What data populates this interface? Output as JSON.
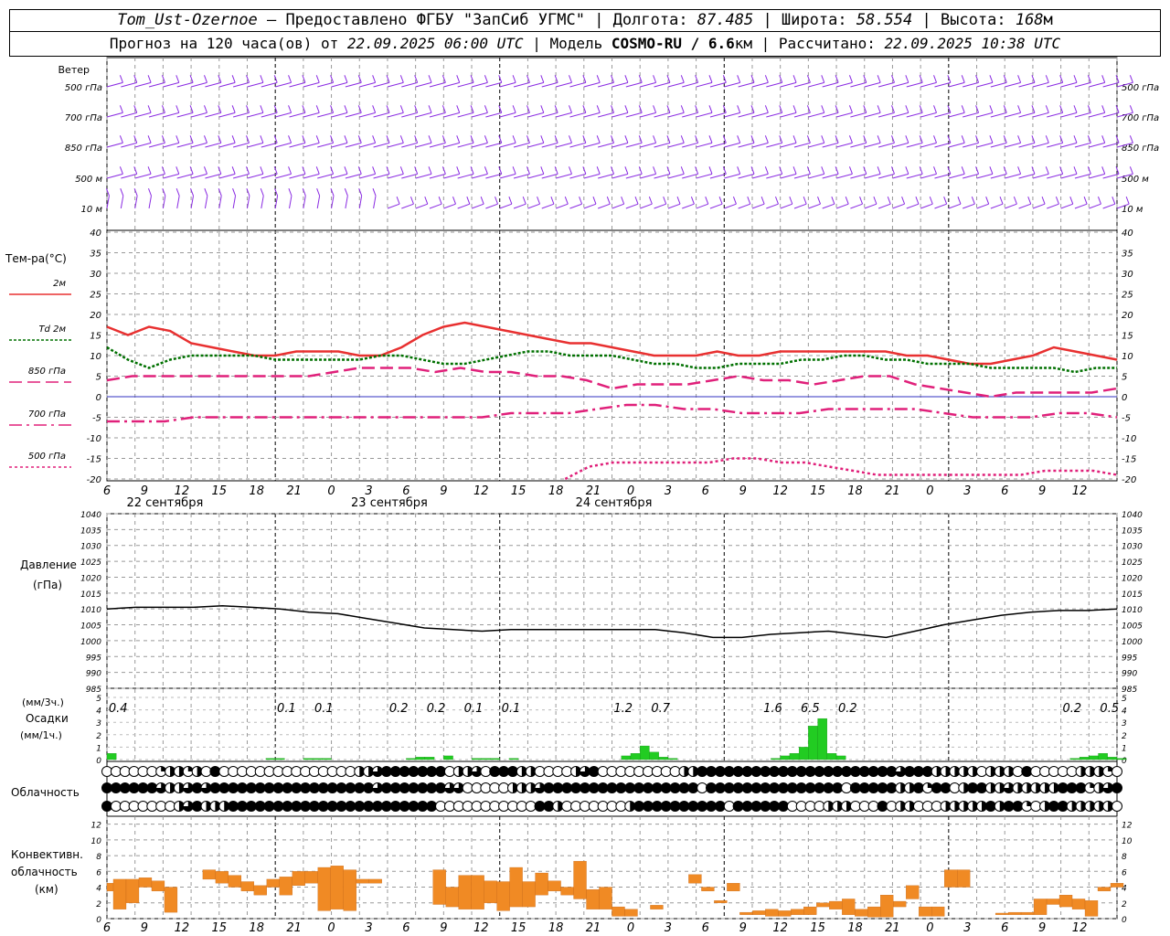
{
  "header": {
    "station": "Tom_Ust-Ozernoe",
    "provided": " — Предоставлено ФГБУ \"ЗапСиб УГМС\" | ",
    "lon_label": "Долгота: ",
    "lon": "87.485",
    "lat_label": " | Широта: ",
    "lat": "58.554",
    "alt_label": " | Высота: ",
    "alt": "168",
    "alt_unit": "м",
    "forecast_label": "Прогноз на 120 часа(ов) от ",
    "forecast_time": "22.09.2025 06:00 UTC",
    "model_label": "  | Модель ",
    "model": "COSMO-RU / 6.6",
    "model_unit": "км",
    "calc_label": " | Рассчитано: ",
    "calc_time": "22.09.2025 10:38 UTC"
  },
  "colors": {
    "t2m": "#e83030",
    "td2m": "#007000",
    "t850": "#e0207a",
    "t700": "#e0207a",
    "t500": "#e0207a",
    "wind": "#8a2be2",
    "precip": "#22cc22",
    "conv": "#f08a24",
    "pressure": "#000000",
    "zero_line": "#3030c0"
  },
  "chart_data": {
    "type": "line",
    "x_hours": [
      "6",
      "9",
      "12",
      "15",
      "18",
      "21",
      "0",
      "3",
      "6",
      "9",
      "12",
      "15",
      "18",
      "21",
      "0",
      "3",
      "6",
      "9",
      "12",
      "15",
      "18",
      "21",
      "0",
      "3",
      "6",
      "9",
      "12"
    ],
    "day_labels": [
      "22 сентября",
      "23 сентября",
      "24 сентября"
    ],
    "wind": {
      "title": "Ветер",
      "levels": [
        "500 гПа",
        "700 гПа",
        "850 гПа",
        "500 м",
        "10  м"
      ]
    },
    "temperature": {
      "title": "Тем-ра(°C)",
      "ylim": [
        -20,
        40
      ],
      "yticks": [
        "40",
        "35",
        "30",
        "25",
        "20",
        "15",
        "10",
        "5",
        "0",
        "-5",
        "-10",
        "-15",
        "-20"
      ],
      "series": [
        {
          "name": "2м",
          "label_prefix": "",
          "values": [
            17,
            15,
            17,
            16,
            13,
            12,
            11,
            10,
            10,
            11,
            11,
            11,
            10,
            10,
            12,
            15,
            17,
            18,
            17,
            16,
            15,
            14,
            13,
            13,
            12,
            11,
            10,
            10,
            10,
            11,
            10,
            10,
            11,
            11,
            11,
            11,
            11,
            11,
            10,
            10,
            9,
            8,
            8,
            9,
            10,
            12,
            11,
            10,
            9
          ]
        },
        {
          "name": "2м",
          "label_prefix": "Td",
          "values": [
            12,
            9,
            7,
            9,
            10,
            10,
            10,
            10,
            9,
            9,
            9,
            9,
            9,
            10,
            10,
            9,
            8,
            8,
            9,
            10,
            11,
            11,
            10,
            10,
            10,
            9,
            8,
            8,
            7,
            7,
            8,
            8,
            8,
            9,
            9,
            10,
            10,
            9,
            9,
            8,
            8,
            8,
            7,
            7,
            7,
            7,
            6,
            7,
            7
          ]
        },
        {
          "name": "850 гПа",
          "label_prefix": "",
          "values": [
            4,
            5,
            5,
            5,
            5,
            5,
            5,
            5,
            5,
            6,
            7,
            7,
            7,
            6,
            7,
            6,
            6,
            5,
            5,
            4,
            2,
            3,
            3,
            3,
            4,
            5,
            4,
            4,
            3,
            4,
            5,
            5,
            3,
            2,
            1,
            0,
            1,
            1,
            1,
            1,
            2
          ]
        },
        {
          "name": "700 гПа",
          "label_prefix": "",
          "values": [
            -6,
            -6,
            -6,
            -5,
            -5,
            -5,
            -5,
            -5,
            -5,
            -5,
            -5,
            -5,
            -5,
            -5,
            -4,
            -4,
            -4,
            -3,
            -2,
            -2,
            -3,
            -3,
            -4,
            -4,
            -4,
            -3,
            -3,
            -3,
            -3,
            -4,
            -5,
            -5,
            -5,
            -4,
            -4,
            -5
          ]
        },
        {
          "name": "500 гПа",
          "label_prefix": "",
          "values": [
            -20,
            -17,
            -16,
            -16,
            -16,
            -16,
            -16,
            -15,
            -15,
            -16,
            -16,
            -17,
            -18,
            -19,
            -19,
            -19,
            -19,
            -19,
            -19,
            -19,
            -18,
            -18,
            -18,
            -19
          ],
          "start_hour_index": 49
        }
      ]
    },
    "pressure": {
      "title": "Давление",
      "unit": "(гПа)",
      "ylim": [
        985,
        1040
      ],
      "yticks": [
        "1040",
        "1035",
        "1030",
        "1025",
        "1020",
        "1015",
        "1010",
        "1005",
        "1000",
        "995",
        "990",
        "985"
      ],
      "values": [
        1010,
        1010.5,
        1010.5,
        1010.5,
        1011,
        1010.5,
        1010,
        1009,
        1008.5,
        1007,
        1005.5,
        1004,
        1003.5,
        1003,
        1003.5,
        1003.5,
        1003.5,
        1003.5,
        1003.5,
        1003.5,
        1002.5,
        1001,
        1001,
        1002,
        1002.5,
        1003,
        1002,
        1001,
        1003,
        1005,
        1006.5,
        1008,
        1009,
        1009.5,
        1009.5,
        1010
      ]
    },
    "precipitation": {
      "title": "Осадки",
      "unit_top": "(мм/3ч.)",
      "unit_bottom": "(мм/1ч.)",
      "ylim": [
        0,
        5
      ],
      "yticks": [
        "5",
        "4",
        "3",
        "2",
        "1",
        "0"
      ],
      "totals": [
        {
          "x_index": 1,
          "label": "0.4"
        },
        {
          "x_index": 19,
          "label": "0.1"
        },
        {
          "x_index": 23,
          "label": "0.1"
        },
        {
          "x_index": 31,
          "label": "0.2"
        },
        {
          "x_index": 35,
          "label": "0.2"
        },
        {
          "x_index": 39,
          "label": "0.1"
        },
        {
          "x_index": 43,
          "label": "0.1"
        },
        {
          "x_index": 55,
          "label": "1.2"
        },
        {
          "x_index": 59,
          "label": "0.7"
        },
        {
          "x_index": 71,
          "label": "1.6"
        },
        {
          "x_index": 75,
          "label": "6.5"
        },
        {
          "x_index": 79,
          "label": "0.2"
        },
        {
          "x_index": 103,
          "label": "0.2"
        },
        {
          "x_index": 107,
          "label": "0.5"
        }
      ],
      "hourly": [
        0.5,
        0,
        0,
        0,
        0,
        0,
        0,
        0,
        0,
        0,
        0,
        0,
        0,
        0,
        0,
        0,
        0,
        0.1,
        0.1,
        0,
        0,
        0.1,
        0.1,
        0.1,
        0,
        0,
        0,
        0,
        0,
        0,
        0,
        0,
        0.1,
        0.2,
        0.2,
        0,
        0.3,
        0,
        0,
        0.1,
        0.1,
        0.1,
        0,
        0.1,
        0,
        0,
        0,
        0,
        0,
        0,
        0,
        0,
        0,
        0,
        0,
        0.3,
        0.5,
        1.1,
        0.6,
        0.2,
        0.1,
        0,
        0,
        0,
        0,
        0,
        0,
        0,
        0,
        0,
        0,
        0.1,
        0.3,
        0.5,
        1.0,
        2.7,
        3.3,
        0.5,
        0.3,
        0,
        0,
        0,
        0,
        0,
        0,
        0,
        0,
        0,
        0,
        0,
        0,
        0,
        0,
        0,
        0,
        0,
        0,
        0,
        0,
        0,
        0,
        0,
        0,
        0.1,
        0.2,
        0.3,
        0.5,
        0.2,
        0.1
      ]
    },
    "cloudiness": {
      "title": "Облачность",
      "rows": [
        "00000012212040000000000000002234444444022304442200002340000000002244444444444444444444443444222220222040000022210",
        "44444432234344444444444444444434444444330000022234444444444444444404444444444444440444442241440244223222224441234",
        "40000000234222444444444444444444444440000000000044200000002444444444404444440000222000402200022222424410244222220"
      ]
    },
    "convective": {
      "title": "Конвективн.",
      "title2": "облачность",
      "unit": "(км)",
      "ylim": [
        0,
        13
      ],
      "yticks": [
        "12",
        "10",
        "8",
        "6",
        "4",
        "2",
        "0"
      ],
      "cells": [
        [
          0,
          3.5,
          4.5
        ],
        [
          1,
          1.2,
          5
        ],
        [
          2,
          2,
          5
        ],
        [
          3,
          4,
          5.2
        ],
        [
          4,
          3.5,
          4.8
        ],
        [
          5,
          0.8,
          4
        ],
        [
          8,
          5,
          6.2
        ],
        [
          9,
          4.5,
          6
        ],
        [
          10,
          4,
          5.5
        ],
        [
          11,
          3.5,
          4.7
        ],
        [
          12,
          3,
          4.2
        ],
        [
          13,
          4,
          5
        ],
        [
          14,
          3,
          5.3
        ],
        [
          15,
          4.2,
          6
        ],
        [
          16,
          4.5,
          6
        ],
        [
          17,
          1,
          6.5
        ],
        [
          18,
          1.2,
          6.7
        ],
        [
          19,
          1,
          6.2
        ],
        [
          20,
          4.5,
          5
        ],
        [
          21,
          4.5,
          5
        ],
        [
          26,
          1.8,
          6.2
        ],
        [
          27,
          1.5,
          4
        ],
        [
          28,
          1.2,
          5.5
        ],
        [
          29,
          1.2,
          5.5
        ],
        [
          30,
          2,
          4.8
        ],
        [
          31,
          1,
          4.7
        ],
        [
          32,
          1.5,
          6.5
        ],
        [
          33,
          1.5,
          4.7
        ],
        [
          34,
          3,
          5.8
        ],
        [
          35,
          3.5,
          4.8
        ],
        [
          36,
          3,
          4
        ],
        [
          37,
          2.5,
          7.3
        ],
        [
          38,
          1.2,
          3.7
        ],
        [
          39,
          1.2,
          4
        ],
        [
          40,
          0.3,
          1.5
        ],
        [
          41,
          0.3,
          1.2
        ],
        [
          43,
          1.2,
          1.7
        ],
        [
          46,
          4.5,
          5.6
        ],
        [
          47,
          3.5,
          4
        ],
        [
          48,
          2,
          2.3
        ],
        [
          49,
          3.5,
          4.5
        ],
        [
          50,
          0.5,
          0.8
        ],
        [
          51,
          0.5,
          1
        ],
        [
          52,
          0.3,
          1.2
        ],
        [
          53,
          0.3,
          1
        ],
        [
          54,
          0.5,
          1.2
        ],
        [
          55,
          0.5,
          1.5
        ],
        [
          56,
          1.5,
          2
        ],
        [
          57,
          1.2,
          2.2
        ],
        [
          58,
          0.5,
          2.5
        ],
        [
          59,
          0.3,
          1.2
        ],
        [
          60,
          0.2,
          1.5
        ],
        [
          61,
          0.2,
          3
        ],
        [
          62,
          1.5,
          2.2
        ],
        [
          63,
          2.5,
          4.2
        ],
        [
          64,
          0.3,
          1.5
        ],
        [
          65,
          0.3,
          1.5
        ],
        [
          66,
          4,
          6.2
        ],
        [
          67,
          4,
          6.2
        ],
        [
          70,
          0.5,
          0.7
        ],
        [
          71,
          0.5,
          0.8
        ],
        [
          72,
          0.5,
          0.8
        ],
        [
          73,
          0.5,
          2.5
        ],
        [
          74,
          1.8,
          2.5
        ],
        [
          75,
          1.5,
          3
        ],
        [
          76,
          1.2,
          2.5
        ],
        [
          77,
          0.3,
          2.3
        ],
        [
          78,
          3.5,
          4
        ],
        [
          79,
          4,
          4.5
        ]
      ]
    }
  }
}
